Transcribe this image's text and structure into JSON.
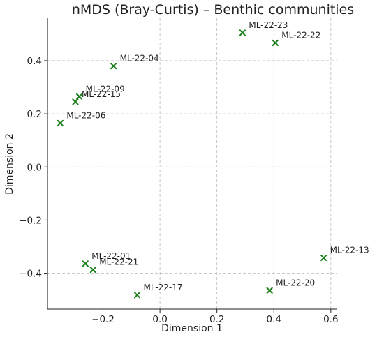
{
  "chart_data": {
    "type": "scatter",
    "title": "nMDS (Bray-Curtis) – Benthic communities",
    "xlabel": "Dimension 1",
    "ylabel": "Dimension 2",
    "xlim": [
      -0.395,
      0.62
    ],
    "ylim": [
      -0.535,
      0.56
    ],
    "xticks": [
      {
        "value": -0.2,
        "label": "−0.2"
      },
      {
        "value": 0.0,
        "label": "0.0"
      },
      {
        "value": 0.2,
        "label": "0.2"
      },
      {
        "value": 0.4,
        "label": "0.4"
      },
      {
        "value": 0.6,
        "label": "0.6"
      }
    ],
    "yticks": [
      {
        "value": -0.4,
        "label": "−0.4"
      },
      {
        "value": -0.2,
        "label": "−0.2"
      },
      {
        "value": 0.0,
        "label": "0.0"
      },
      {
        "value": 0.2,
        "label": "0.2"
      },
      {
        "value": 0.4,
        "label": "0.4"
      }
    ],
    "grid": true,
    "marker": "x",
    "marker_color": "#1a7f1a",
    "points": [
      {
        "label": "ML-22-23",
        "x": 0.29,
        "y": 0.505
      },
      {
        "label": "ML-22-22",
        "x": 0.405,
        "y": 0.467
      },
      {
        "label": "ML-22-04",
        "x": -0.163,
        "y": 0.38
      },
      {
        "label": "ML-22-09",
        "x": -0.283,
        "y": 0.265
      },
      {
        "label": "ML-22-15",
        "x": -0.297,
        "y": 0.245
      },
      {
        "label": "ML-22-06",
        "x": -0.35,
        "y": 0.165
      },
      {
        "label": "ML-22-13",
        "x": 0.575,
        "y": -0.342
      },
      {
        "label": "ML-22-01",
        "x": -0.262,
        "y": -0.364
      },
      {
        "label": "ML-22-21",
        "x": -0.235,
        "y": -0.387
      },
      {
        "label": "ML-22-20",
        "x": 0.385,
        "y": -0.465
      },
      {
        "label": "ML-22-17",
        "x": -0.08,
        "y": -0.482
      }
    ]
  }
}
